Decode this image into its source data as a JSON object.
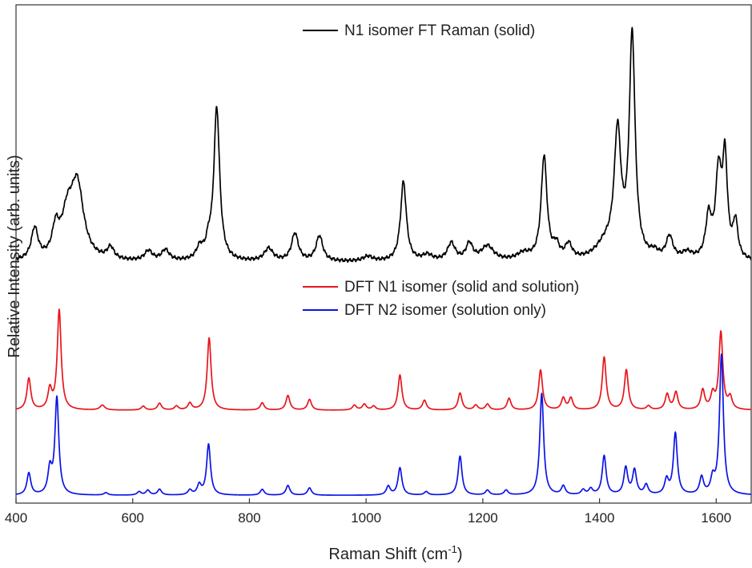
{
  "chart_data": {
    "type": "line",
    "xlabel": "Raman Shift (cm",
    "xlabel_sup": "-1",
    "xlabel_end": ")",
    "ylabel": "Relative Intensity (arb. units)",
    "xlim": [
      400,
      1660
    ],
    "ylim": [
      0,
      1
    ],
    "y_ticks_shown": false,
    "x_ticks": [
      400,
      600,
      800,
      1000,
      1200,
      1400,
      1600
    ],
    "x_tick_labels": [
      "400",
      "600",
      "800",
      "1000",
      "1200",
      "1400",
      "1600"
    ],
    "grid": false,
    "legend_placement": "top-center (one entry above the upper trace, two between the upper and middle traces)",
    "series": [
      {
        "name": "N1 isomer FT Raman (solid)",
        "color": "#000000",
        "baseline": 0.483,
        "noise": true,
        "peaks": [
          {
            "x": 432,
            "h": 0.064,
            "w": 7
          },
          {
            "x": 468,
            "h": 0.056,
            "w": 7
          },
          {
            "x": 488,
            "h": 0.08,
            "w": 12
          },
          {
            "x": 505,
            "h": 0.148,
            "w": 13
          },
          {
            "x": 562,
            "h": 0.024,
            "w": 7
          },
          {
            "x": 627,
            "h": 0.02,
            "w": 8
          },
          {
            "x": 656,
            "h": 0.022,
            "w": 8
          },
          {
            "x": 715,
            "h": 0.024,
            "w": 7
          },
          {
            "x": 730,
            "h": 0.028,
            "w": 5
          },
          {
            "x": 744,
            "h": 0.313,
            "w": 6
          },
          {
            "x": 833,
            "h": 0.026,
            "w": 9
          },
          {
            "x": 878,
            "h": 0.057,
            "w": 7
          },
          {
            "x": 920,
            "h": 0.052,
            "w": 7
          },
          {
            "x": 1003,
            "h": 0.01,
            "w": 10
          },
          {
            "x": 1064,
            "h": 0.163,
            "w": 6
          },
          {
            "x": 1105,
            "h": 0.012,
            "w": 10
          },
          {
            "x": 1146,
            "h": 0.036,
            "w": 8
          },
          {
            "x": 1177,
            "h": 0.034,
            "w": 7
          },
          {
            "x": 1208,
            "h": 0.03,
            "w": 13
          },
          {
            "x": 1270,
            "h": 0.014,
            "w": 14
          },
          {
            "x": 1305,
            "h": 0.212,
            "w": 6
          },
          {
            "x": 1326,
            "h": 0.026,
            "w": 6
          },
          {
            "x": 1347,
            "h": 0.03,
            "w": 7
          },
          {
            "x": 1410,
            "h": 0.03,
            "w": 20
          },
          {
            "x": 1431,
            "h": 0.25,
            "w": 7
          },
          {
            "x": 1456,
            "h": 0.454,
            "w": 6
          },
          {
            "x": 1494,
            "h": 0.012,
            "w": 8
          },
          {
            "x": 1520,
            "h": 0.046,
            "w": 7
          },
          {
            "x": 1550,
            "h": 0.014,
            "w": 10
          },
          {
            "x": 1587,
            "h": 0.084,
            "w": 6
          },
          {
            "x": 1604,
            "h": 0.17,
            "w": 6
          },
          {
            "x": 1615,
            "h": 0.198,
            "w": 5
          },
          {
            "x": 1633,
            "h": 0.074,
            "w": 5
          }
        ]
      },
      {
        "name": "DFT N1 isomer (solid and solution)",
        "color": "#e8151b",
        "baseline": 0.18,
        "noise": false,
        "peaks": [
          {
            "x": 422,
            "h": 0.065,
            "w": 4
          },
          {
            "x": 458,
            "h": 0.04,
            "w": 4
          },
          {
            "x": 474,
            "h": 0.204,
            "w": 4
          },
          {
            "x": 548,
            "h": 0.01,
            "w": 5
          },
          {
            "x": 618,
            "h": 0.008,
            "w": 4
          },
          {
            "x": 646,
            "h": 0.014,
            "w": 4
          },
          {
            "x": 675,
            "h": 0.008,
            "w": 4
          },
          {
            "x": 698,
            "h": 0.014,
            "w": 4
          },
          {
            "x": 731,
            "h": 0.148,
            "w": 4
          },
          {
            "x": 822,
            "h": 0.015,
            "w": 4
          },
          {
            "x": 866,
            "h": 0.03,
            "w": 4
          },
          {
            "x": 903,
            "h": 0.022,
            "w": 4
          },
          {
            "x": 980,
            "h": 0.01,
            "w": 4
          },
          {
            "x": 997,
            "h": 0.012,
            "w": 4
          },
          {
            "x": 1013,
            "h": 0.008,
            "w": 4
          },
          {
            "x": 1058,
            "h": 0.072,
            "w": 4
          },
          {
            "x": 1100,
            "h": 0.02,
            "w": 4
          },
          {
            "x": 1161,
            "h": 0.035,
            "w": 4
          },
          {
            "x": 1188,
            "h": 0.01,
            "w": 4
          },
          {
            "x": 1208,
            "h": 0.012,
            "w": 4
          },
          {
            "x": 1245,
            "h": 0.024,
            "w": 4
          },
          {
            "x": 1299,
            "h": 0.082,
            "w": 4
          },
          {
            "x": 1338,
            "h": 0.024,
            "w": 4
          },
          {
            "x": 1351,
            "h": 0.024,
            "w": 4
          },
          {
            "x": 1408,
            "h": 0.108,
            "w": 4
          },
          {
            "x": 1446,
            "h": 0.082,
            "w": 4
          },
          {
            "x": 1484,
            "h": 0.008,
            "w": 4
          },
          {
            "x": 1516,
            "h": 0.032,
            "w": 4
          },
          {
            "x": 1531,
            "h": 0.036,
            "w": 4
          },
          {
            "x": 1577,
            "h": 0.04,
            "w": 4
          },
          {
            "x": 1594,
            "h": 0.03,
            "w": 4
          },
          {
            "x": 1608,
            "h": 0.158,
            "w": 4
          },
          {
            "x": 1624,
            "h": 0.024,
            "w": 4
          }
        ]
      },
      {
        "name": "DFT N2 isomer (solution only)",
        "color": "#0b13e6",
        "baseline": 0.006,
        "noise": false,
        "peaks": [
          {
            "x": 422,
            "h": 0.045,
            "w": 4
          },
          {
            "x": 458,
            "h": 0.05,
            "w": 4
          },
          {
            "x": 470,
            "h": 0.198,
            "w": 4
          },
          {
            "x": 554,
            "h": 0.005,
            "w": 4
          },
          {
            "x": 611,
            "h": 0.007,
            "w": 4
          },
          {
            "x": 626,
            "h": 0.01,
            "w": 4
          },
          {
            "x": 646,
            "h": 0.012,
            "w": 4
          },
          {
            "x": 698,
            "h": 0.01,
            "w": 4
          },
          {
            "x": 714,
            "h": 0.02,
            "w": 4
          },
          {
            "x": 730,
            "h": 0.104,
            "w": 4
          },
          {
            "x": 822,
            "h": 0.012,
            "w": 4
          },
          {
            "x": 866,
            "h": 0.02,
            "w": 4
          },
          {
            "x": 903,
            "h": 0.015,
            "w": 4
          },
          {
            "x": 1038,
            "h": 0.018,
            "w": 4
          },
          {
            "x": 1058,
            "h": 0.056,
            "w": 4
          },
          {
            "x": 1103,
            "h": 0.007,
            "w": 4
          },
          {
            "x": 1161,
            "h": 0.08,
            "w": 4
          },
          {
            "x": 1208,
            "h": 0.01,
            "w": 4
          },
          {
            "x": 1240,
            "h": 0.01,
            "w": 4
          },
          {
            "x": 1301,
            "h": 0.208,
            "w": 4
          },
          {
            "x": 1338,
            "h": 0.018,
            "w": 4
          },
          {
            "x": 1372,
            "h": 0.01,
            "w": 4
          },
          {
            "x": 1385,
            "h": 0.012,
            "w": 4
          },
          {
            "x": 1408,
            "h": 0.08,
            "w": 4
          },
          {
            "x": 1445,
            "h": 0.055,
            "w": 4
          },
          {
            "x": 1460,
            "h": 0.05,
            "w": 4
          },
          {
            "x": 1480,
            "h": 0.02,
            "w": 4
          },
          {
            "x": 1515,
            "h": 0.03,
            "w": 4
          },
          {
            "x": 1530,
            "h": 0.126,
            "w": 4
          },
          {
            "x": 1575,
            "h": 0.035,
            "w": 4
          },
          {
            "x": 1594,
            "h": 0.03,
            "w": 4
          },
          {
            "x": 1609,
            "h": 0.286,
            "w": 4
          }
        ]
      }
    ]
  }
}
